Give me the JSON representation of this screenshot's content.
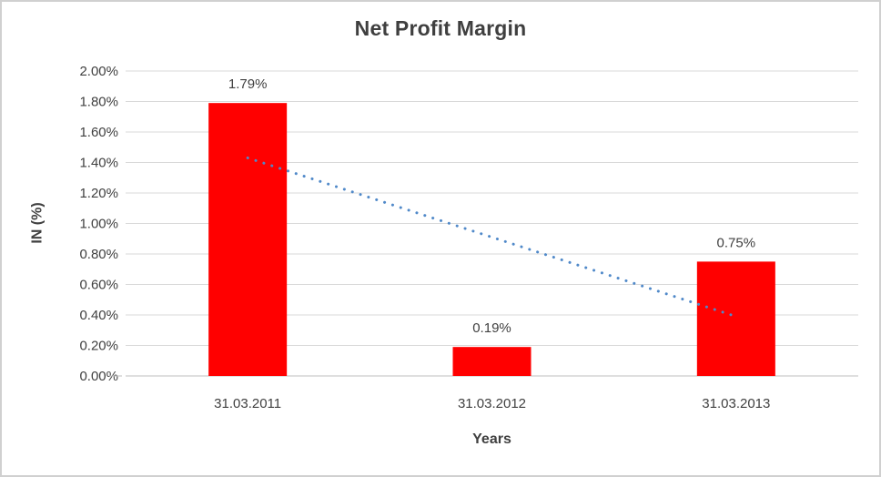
{
  "chart_data": {
    "type": "bar",
    "title": "Net Profit Margin",
    "categories": [
      "31.03.2011",
      "31.03.2012",
      "31.03.2013"
    ],
    "series": [
      {
        "name": "Net Profit Margin",
        "values": [
          1.79,
          0.19,
          0.75
        ]
      }
    ],
    "data_labels": [
      "1.79%",
      "0.19%",
      "0.75%"
    ],
    "xlabel": "Years",
    "ylabel": "IN (%)",
    "ylim": [
      0,
      2.0
    ],
    "ytick_step": 0.2,
    "ytick_labels": [
      "0.00%",
      "0.20%",
      "0.40%",
      "0.60%",
      "0.80%",
      "1.00%",
      "1.20%",
      "1.40%",
      "1.60%",
      "1.80%",
      "2.00%"
    ],
    "grid": true,
    "legend": "none",
    "trendline": {
      "type": "linear",
      "style": "dotted",
      "start_value": 1.43,
      "end_value": 0.39
    },
    "colors": {
      "bar": "#FF0000",
      "trend": "#5089C9",
      "grid": "#D9D9D9",
      "axis": "#BFBFBF",
      "text": "#404040",
      "title": "#3F3F3F"
    }
  }
}
